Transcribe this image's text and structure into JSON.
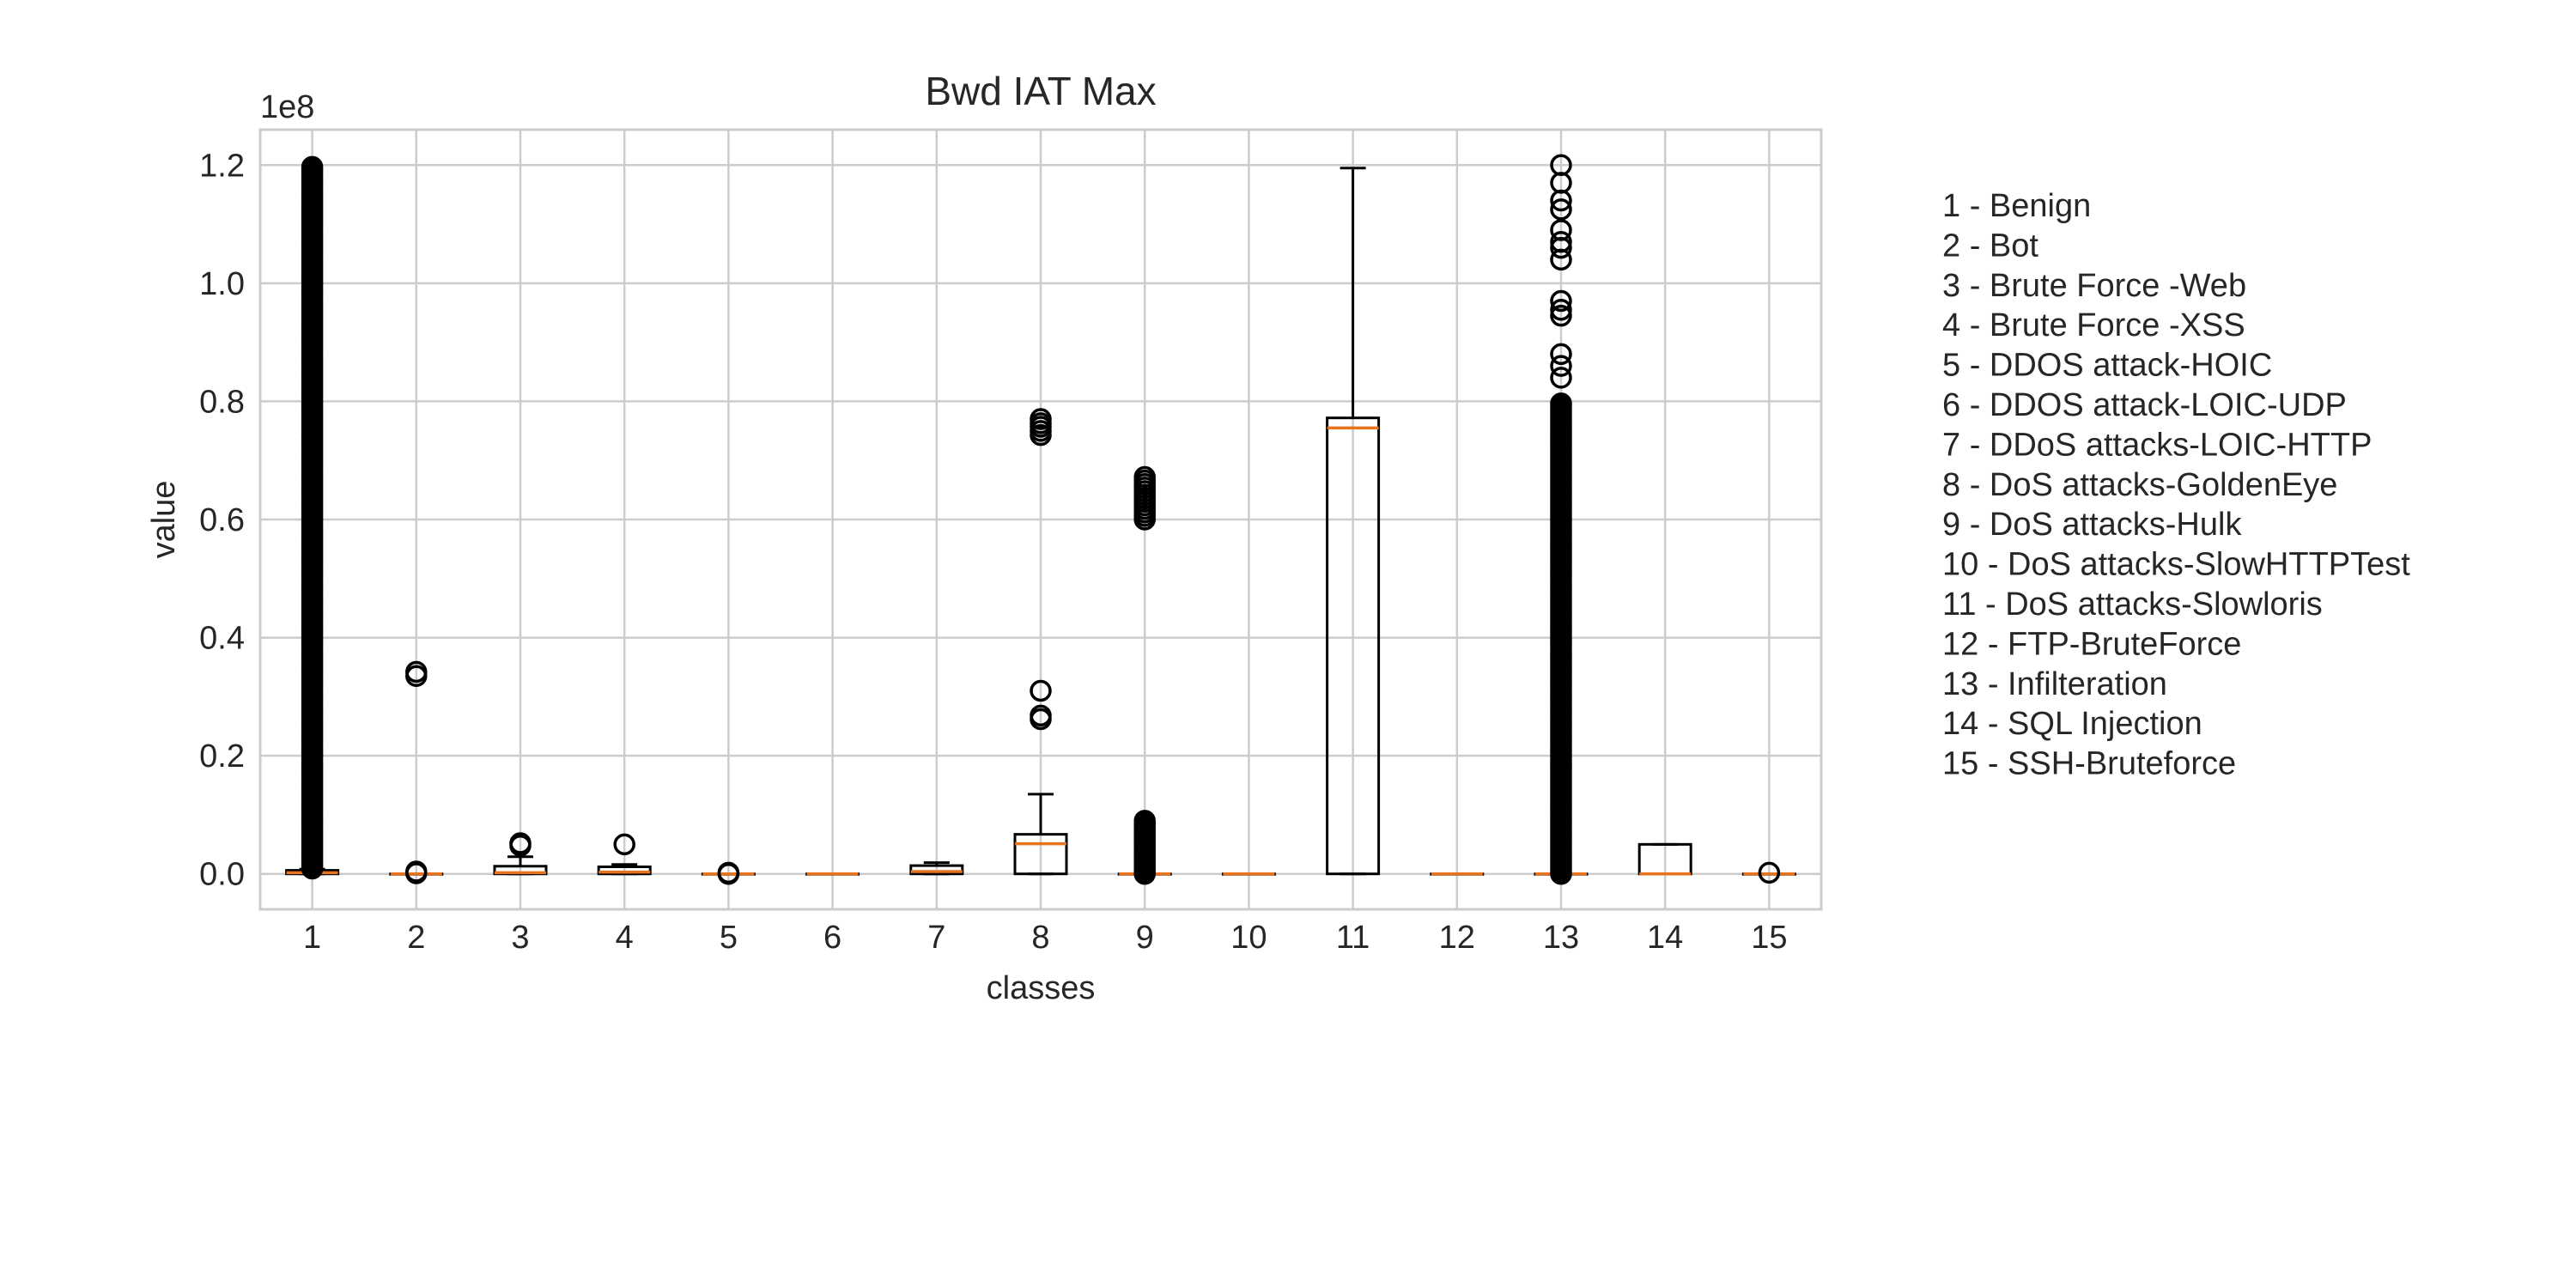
{
  "chart_data": {
    "type": "box",
    "title": "Bwd IAT Max",
    "xlabel": "classes",
    "ylabel": "value",
    "y_scale_label": "1e8",
    "y_multiplier": 100000000,
    "ylim": [
      -0.06,
      1.26
    ],
    "y_ticks": [
      0.0,
      0.2,
      0.4,
      0.6,
      0.8,
      1.0,
      1.2
    ],
    "y_tick_labels": [
      "0.0",
      "0.2",
      "0.4",
      "0.6",
      "0.8",
      "1.0",
      "1.2"
    ],
    "grid": true,
    "categories": [
      "1",
      "2",
      "3",
      "4",
      "5",
      "6",
      "7",
      "8",
      "9",
      "10",
      "11",
      "12",
      "13",
      "14",
      "15"
    ],
    "boxes": [
      {
        "class": "1",
        "whislo": 0,
        "q1": 0,
        "med": 0.002,
        "q3": 0.006,
        "whishi": 0.008,
        "fliers_range": [
          0.009,
          1.2
        ],
        "fliers": []
      },
      {
        "class": "2",
        "whislo": 0,
        "q1": 0,
        "med": 0,
        "q3": 0,
        "whishi": 0,
        "fliers": [
          0.001,
          0.004,
          0.335,
          0.342
        ]
      },
      {
        "class": "3",
        "whislo": 0,
        "q1": 0,
        "med": 0.002,
        "q3": 0.013,
        "whishi": 0.029,
        "fliers": [
          0.048,
          0.052
        ]
      },
      {
        "class": "4",
        "whislo": 0,
        "q1": 0,
        "med": 0.003,
        "q3": 0.012,
        "whishi": 0.016,
        "fliers": [
          0.05
        ]
      },
      {
        "class": "5",
        "whislo": 0,
        "q1": 0,
        "med": 0,
        "q3": 0,
        "whishi": 0,
        "fliers": [
          0.0,
          0.002
        ]
      },
      {
        "class": "6",
        "whislo": 0,
        "q1": 0,
        "med": 0,
        "q3": 0,
        "whishi": 0,
        "fliers": []
      },
      {
        "class": "7",
        "whislo": 0,
        "q1": 0,
        "med": 0.004,
        "q3": 0.014,
        "whishi": 0.019,
        "fliers": []
      },
      {
        "class": "8",
        "whislo": 0,
        "q1": 0,
        "med": 0.051,
        "q3": 0.067,
        "whishi": 0.135,
        "fliers": [
          0.262,
          0.268,
          0.31,
          0.743,
          0.75,
          0.757,
          0.763,
          0.77
        ]
      },
      {
        "class": "9",
        "whislo": 0,
        "q1": 0,
        "med": 0,
        "q3": 0,
        "whishi": 0,
        "fliers_range": [
          0.0,
          0.09
        ],
        "fliers": [
          0.6,
          0.606,
          0.612,
          0.618,
          0.624,
          0.63,
          0.636,
          0.642,
          0.648,
          0.654,
          0.66,
          0.666,
          0.672
        ]
      },
      {
        "class": "10",
        "whislo": 0,
        "q1": 0,
        "med": 0,
        "q3": 0,
        "whishi": 0,
        "fliers": []
      },
      {
        "class": "11",
        "whislo": 0,
        "q1": 0,
        "med": 0.755,
        "q3": 0.772,
        "whishi": 1.195,
        "fliers": []
      },
      {
        "class": "12",
        "whislo": 0,
        "q1": 0,
        "med": 0,
        "q3": 0,
        "whishi": 0,
        "fliers": []
      },
      {
        "class": "13",
        "whislo": 0,
        "q1": 0,
        "med": 0,
        "q3": 0,
        "whishi": 0,
        "fliers_range": [
          0.0,
          0.8
        ],
        "fliers": [
          0.84,
          0.86,
          0.88,
          0.945,
          0.955,
          0.97,
          1.04,
          1.06,
          1.07,
          1.09,
          1.125,
          1.14,
          1.17,
          1.2
        ]
      },
      {
        "class": "14",
        "whislo": 0,
        "q1": 0,
        "med": 0,
        "q3": 0.05,
        "whishi": 0.05,
        "fliers": []
      },
      {
        "class": "15",
        "whislo": 0,
        "q1": 0,
        "med": 0,
        "q3": 0,
        "whishi": 0,
        "fliers": [
          0.002
        ]
      }
    ],
    "colors": {
      "box": "#000000",
      "median": "#e8731d",
      "grid": "#cccccc",
      "axes": "#cccccc"
    },
    "legend_placement": "right",
    "legend": [
      "1 - Benign",
      "2 - Bot",
      "3 - Brute Force -Web",
      "4 - Brute Force -XSS",
      "5 - DDOS attack-HOIC",
      "6 - DDOS attack-LOIC-UDP",
      "7 - DDoS attacks-LOIC-HTTP",
      "8 - DoS attacks-GoldenEye",
      "9 - DoS attacks-Hulk",
      "10 - DoS attacks-SlowHTTPTest",
      "11 - DoS attacks-Slowloris",
      "12 - FTP-BruteForce",
      "13 - Infilteration",
      "14 - SQL Injection",
      "15 - SSH-Bruteforce"
    ]
  }
}
